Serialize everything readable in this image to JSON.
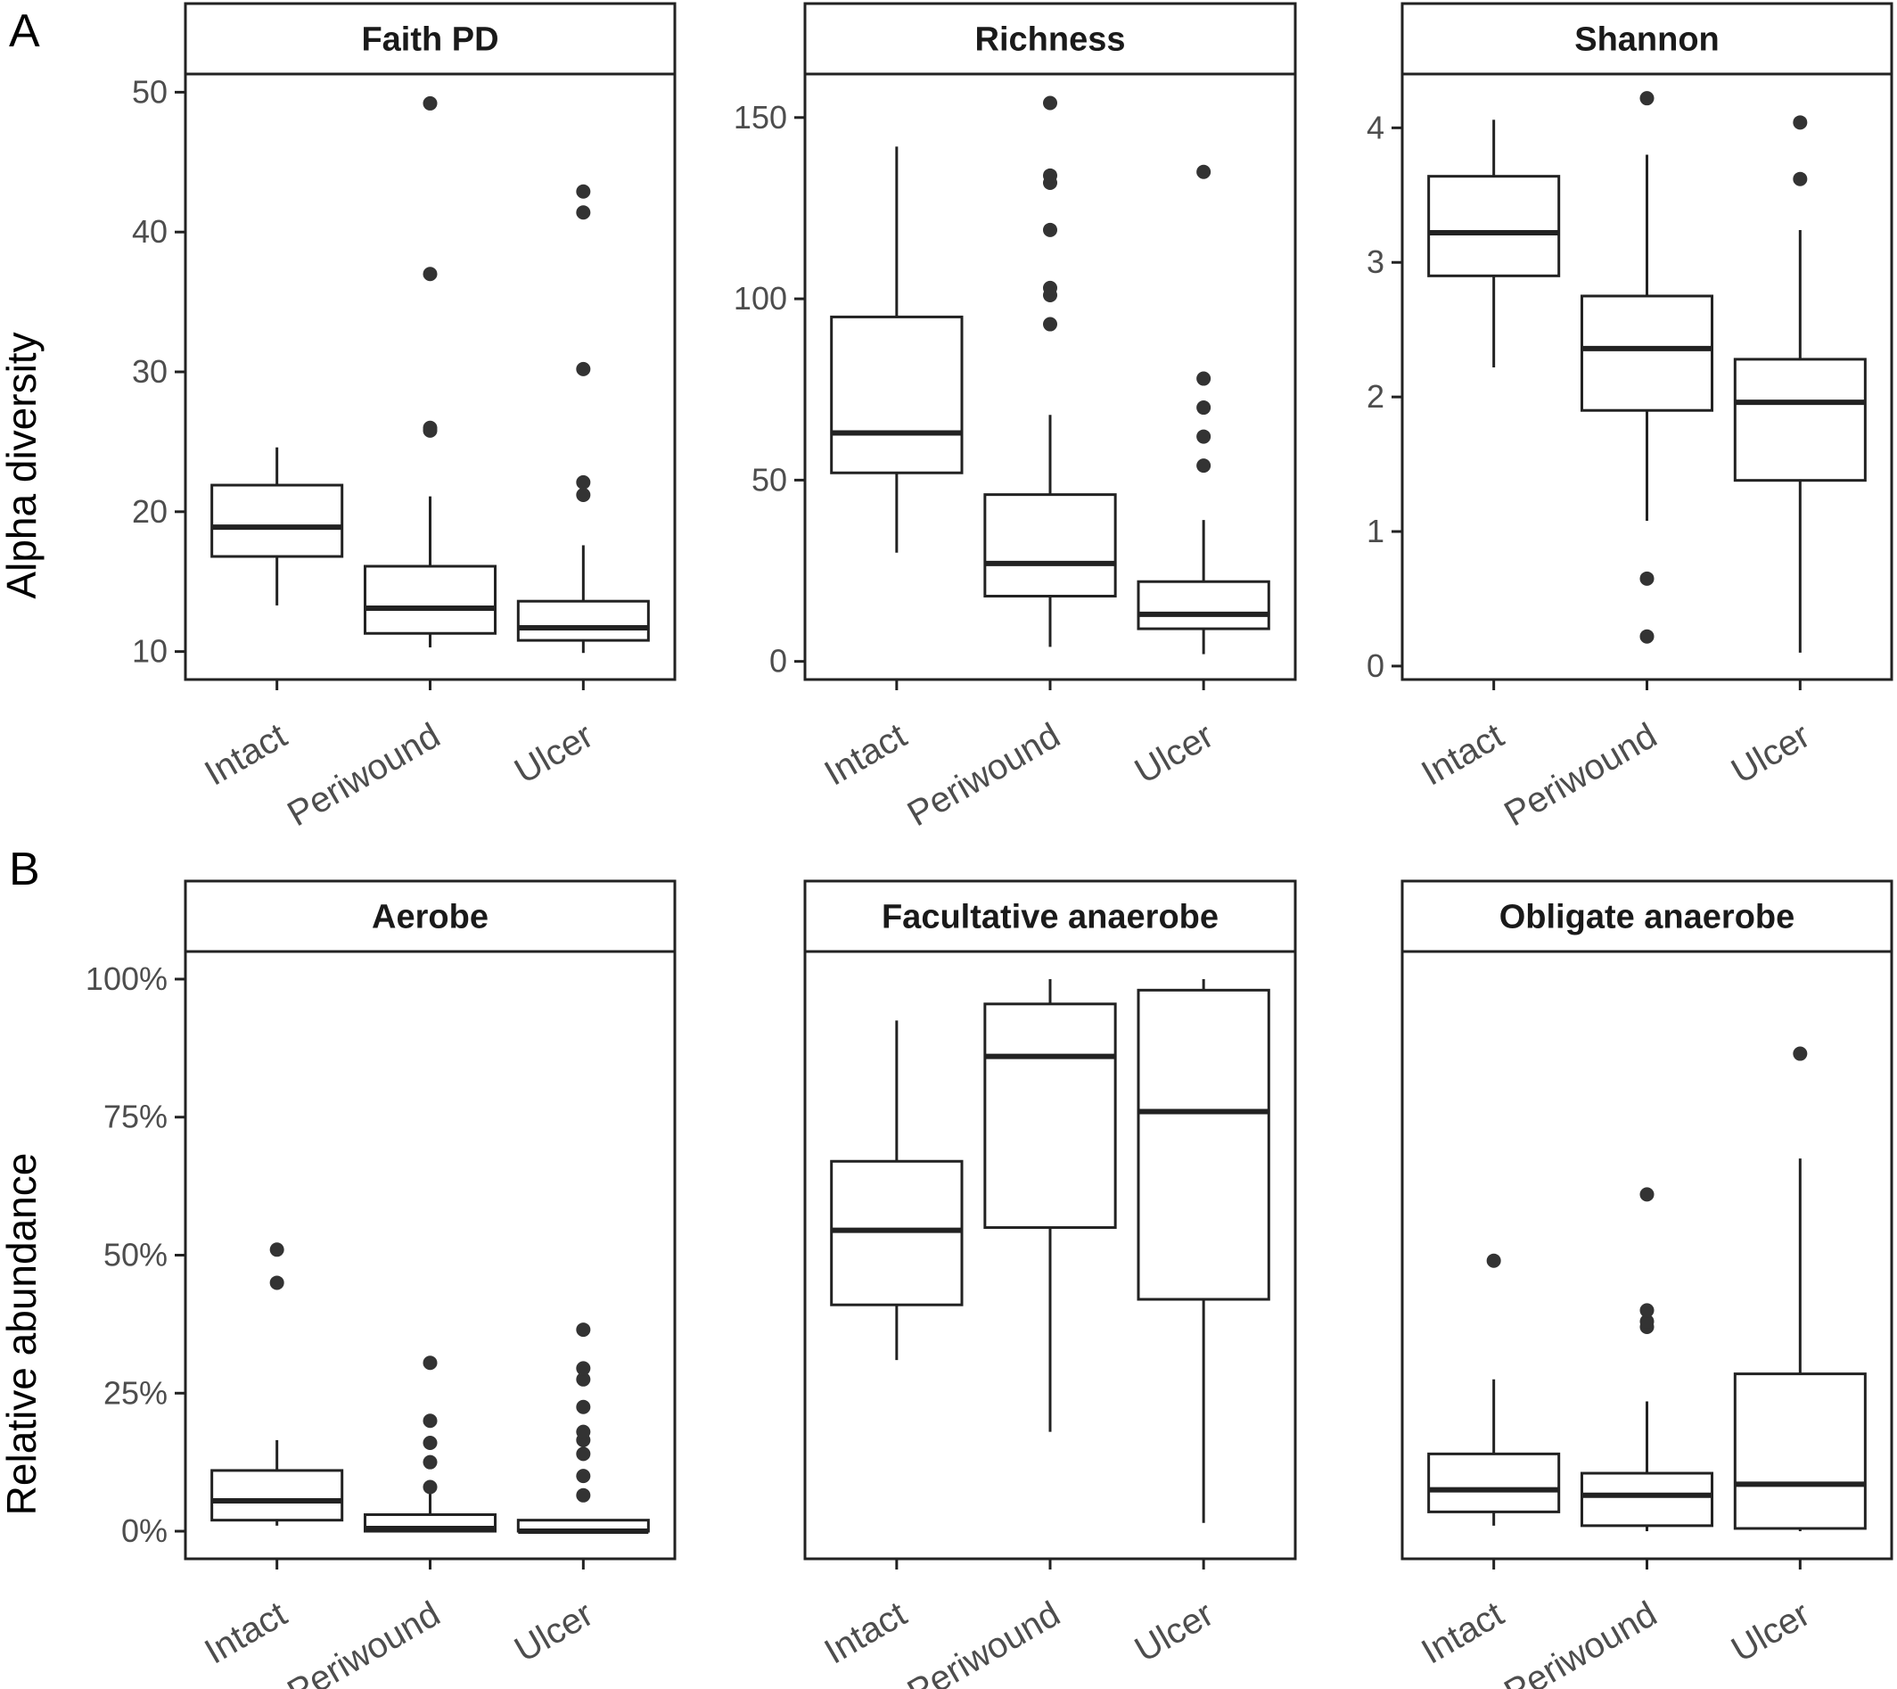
{
  "panel_labels": {
    "a": "A",
    "b": "B"
  },
  "row_titles": {
    "a": "Alpha diversity",
    "b": "Relative abundance"
  },
  "chart_data": [
    {
      "type": "box",
      "panel": "A",
      "title": "Faith PD",
      "categories": [
        "Intact",
        "Periwound",
        "Ulcer"
      ],
      "ylabel": "Alpha diversity",
      "ylim": [
        8,
        51.3
      ],
      "yticks": [
        10,
        20,
        30,
        40,
        50
      ],
      "ytick_labels": [
        "10",
        "20",
        "30",
        "40",
        "50"
      ],
      "boxes": [
        {
          "category": "Intact",
          "whisker_low": 13.3,
          "q1": 16.8,
          "median": 18.9,
          "q3": 21.9,
          "whisker_high": 24.6,
          "outliers": []
        },
        {
          "category": "Periwound",
          "whisker_low": 10.3,
          "q1": 11.3,
          "median": 13.1,
          "q3": 16.1,
          "whisker_high": 21.1,
          "outliers": [
            25.8,
            26.0,
            37.0,
            49.2
          ]
        },
        {
          "category": "Ulcer",
          "whisker_low": 9.9,
          "q1": 10.8,
          "median": 11.7,
          "q3": 13.6,
          "whisker_high": 17.6,
          "outliers": [
            21.2,
            22.1,
            30.2,
            41.4,
            42.9
          ]
        }
      ]
    },
    {
      "type": "box",
      "panel": "A",
      "title": "Richness",
      "categories": [
        "Intact",
        "Periwound",
        "Ulcer"
      ],
      "ylim": [
        -5,
        162
      ],
      "yticks": [
        0,
        50,
        100,
        150
      ],
      "ytick_labels": [
        "0",
        "50",
        "100",
        "150"
      ],
      "boxes": [
        {
          "category": "Intact",
          "whisker_low": 30,
          "q1": 52,
          "median": 63,
          "q3": 95,
          "whisker_high": 142,
          "outliers": []
        },
        {
          "category": "Periwound",
          "whisker_low": 4,
          "q1": 18,
          "median": 27,
          "q3": 46,
          "whisker_high": 68,
          "outliers": [
            93,
            101,
            103,
            119,
            132,
            134,
            154
          ]
        },
        {
          "category": "Ulcer",
          "whisker_low": 2,
          "q1": 9,
          "median": 13,
          "q3": 22,
          "whisker_high": 39,
          "outliers": [
            54,
            62,
            70,
            78,
            135
          ]
        }
      ]
    },
    {
      "type": "box",
      "panel": "A",
      "title": "Shannon",
      "categories": [
        "Intact",
        "Periwound",
        "Ulcer"
      ],
      "ylim": [
        -0.1,
        4.4
      ],
      "yticks": [
        0,
        1,
        2,
        3,
        4
      ],
      "ytick_labels": [
        "0",
        "1",
        "2",
        "3",
        "4"
      ],
      "boxes": [
        {
          "category": "Intact",
          "whisker_low": 2.22,
          "q1": 2.9,
          "median": 3.22,
          "q3": 3.64,
          "whisker_high": 4.06,
          "outliers": []
        },
        {
          "category": "Periwound",
          "whisker_low": 1.08,
          "q1": 1.9,
          "median": 2.36,
          "q3": 2.75,
          "whisker_high": 3.8,
          "outliers": [
            0.22,
            0.65,
            4.22
          ]
        },
        {
          "category": "Ulcer",
          "whisker_low": 0.1,
          "q1": 1.38,
          "median": 1.96,
          "q3": 2.28,
          "whisker_high": 3.24,
          "outliers": [
            3.62,
            4.04
          ]
        }
      ]
    },
    {
      "type": "box",
      "panel": "B",
      "title": "Aerobe",
      "categories": [
        "Intact",
        "Periwound",
        "Ulcer"
      ],
      "ylabel": "Relative abundance",
      "ylim": [
        -0.05,
        1.05
      ],
      "yticks": [
        0,
        0.25,
        0.5,
        0.75,
        1
      ],
      "ytick_labels": [
        "0%",
        "25%",
        "50%",
        "75%",
        "100%"
      ],
      "boxes": [
        {
          "category": "Intact",
          "whisker_low": 0.01,
          "q1": 0.02,
          "median": 0.055,
          "q3": 0.11,
          "whisker_high": 0.165,
          "outliers": [
            0.45,
            0.51
          ]
        },
        {
          "category": "Periwound",
          "whisker_low": 0.0,
          "q1": 0.0,
          "median": 0.005,
          "q3": 0.03,
          "whisker_high": 0.07,
          "outliers": [
            0.08,
            0.125,
            0.16,
            0.2,
            0.305
          ]
        },
        {
          "category": "Ulcer",
          "whisker_low": 0.0,
          "q1": 0.0,
          "median": 0.0,
          "q3": 0.02,
          "whisker_high": 0.02,
          "outliers": [
            0.065,
            0.1,
            0.14,
            0.165,
            0.18,
            0.225,
            0.275,
            0.295,
            0.365
          ]
        }
      ]
    },
    {
      "type": "box",
      "panel": "B",
      "title": "Facultative anaerobe",
      "categories": [
        "Intact",
        "Periwound",
        "Ulcer"
      ],
      "ylim": [
        -0.05,
        1.05
      ],
      "yticks": [],
      "ytick_labels": [],
      "boxes": [
        {
          "category": "Intact",
          "whisker_low": 0.31,
          "q1": 0.41,
          "median": 0.545,
          "q3": 0.67,
          "whisker_high": 0.925,
          "outliers": []
        },
        {
          "category": "Periwound",
          "whisker_low": 0.18,
          "q1": 0.55,
          "median": 0.86,
          "q3": 0.955,
          "whisker_high": 1.0,
          "outliers": []
        },
        {
          "category": "Ulcer",
          "whisker_low": 0.015,
          "q1": 0.42,
          "median": 0.76,
          "q3": 0.98,
          "whisker_high": 1.0,
          "outliers": []
        }
      ]
    },
    {
      "type": "box",
      "panel": "B",
      "title": "Obligate anaerobe",
      "categories": [
        "Intact",
        "Periwound",
        "Ulcer"
      ],
      "ylim": [
        -0.05,
        1.05
      ],
      "yticks": [],
      "ytick_labels": [],
      "boxes": [
        {
          "category": "Intact",
          "whisker_low": 0.01,
          "q1": 0.035,
          "median": 0.075,
          "q3": 0.14,
          "whisker_high": 0.275,
          "outliers": [
            0.49
          ]
        },
        {
          "category": "Periwound",
          "whisker_low": 0.0,
          "q1": 0.01,
          "median": 0.065,
          "q3": 0.105,
          "whisker_high": 0.235,
          "outliers": [
            0.37,
            0.38,
            0.4,
            0.61
          ]
        },
        {
          "category": "Ulcer",
          "whisker_low": 0.0,
          "q1": 0.005,
          "median": 0.085,
          "q3": 0.285,
          "whisker_high": 0.675,
          "outliers": [
            0.865
          ]
        }
      ]
    }
  ]
}
